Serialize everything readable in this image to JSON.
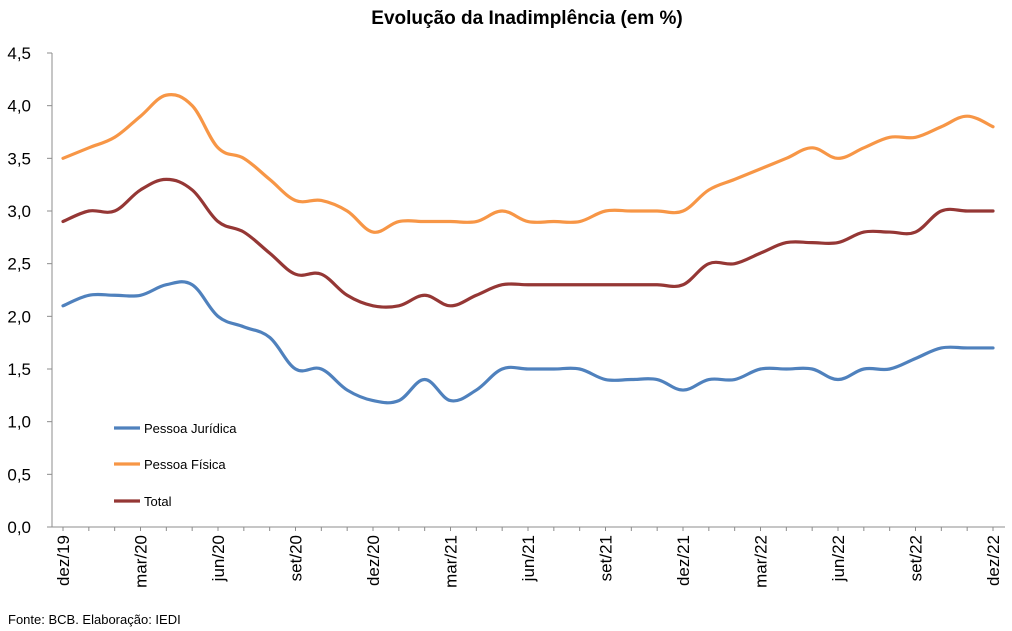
{
  "chart_data": {
    "type": "line",
    "title": "Evolução da Inadimplência (em %)",
    "ylim": [
      0,
      4.5
    ],
    "yticks": [
      "0,0",
      "0,5",
      "1,0",
      "1,5",
      "2,0",
      "2,5",
      "3,0",
      "3,5",
      "4,0",
      "4,5"
    ],
    "ytick_values": [
      0,
      0.5,
      1,
      1.5,
      2,
      2.5,
      3,
      3.5,
      4,
      4.5
    ],
    "x": [
      "dez/19",
      "jan/20",
      "fev/20",
      "mar/20",
      "abr/20",
      "mai/20",
      "jun/20",
      "jul/20",
      "ago/20",
      "set/20",
      "out/20",
      "nov/20",
      "dez/20",
      "jan/21",
      "fev/21",
      "mar/21",
      "abr/21",
      "mai/21",
      "jun/21",
      "jul/21",
      "ago/21",
      "set/21",
      "out/21",
      "nov/21",
      "dez/21",
      "jan/22",
      "fev/22",
      "mar/22",
      "abr/22",
      "mai/22",
      "jun/22",
      "jul/22",
      "ago/22",
      "set/22",
      "out/22",
      "nov/22",
      "dez/22"
    ],
    "xtick_labels": [
      "dez/19",
      "mar/20",
      "jun/20",
      "set/20",
      "dez/20",
      "mar/21",
      "jun/21",
      "set/21",
      "dez/21",
      "mar/22",
      "jun/22",
      "set/22",
      "dez/22"
    ],
    "xtick_index": [
      0,
      3,
      6,
      9,
      12,
      15,
      18,
      21,
      24,
      27,
      30,
      33,
      36
    ],
    "grid": false,
    "legend_position": "bottom-left",
    "series": [
      {
        "name": "Pessoa Jurídica",
        "color": "#4f81bd",
        "values": [
          2.1,
          2.2,
          2.2,
          2.2,
          2.3,
          2.3,
          2.0,
          1.9,
          1.8,
          1.5,
          1.5,
          1.3,
          1.2,
          1.2,
          1.4,
          1.2,
          1.3,
          1.5,
          1.5,
          1.5,
          1.5,
          1.4,
          1.4,
          1.4,
          1.3,
          1.4,
          1.4,
          1.5,
          1.5,
          1.5,
          1.4,
          1.5,
          1.5,
          1.6,
          1.7,
          1.7,
          1.7
        ]
      },
      {
        "name": "Pessoa Física",
        "color": "#f79646",
        "values": [
          3.5,
          3.6,
          3.7,
          3.9,
          4.1,
          4.0,
          3.6,
          3.5,
          3.3,
          3.1,
          3.1,
          3.0,
          2.8,
          2.9,
          2.9,
          2.9,
          2.9,
          3.0,
          2.9,
          2.9,
          2.9,
          3.0,
          3.0,
          3.0,
          3.0,
          3.2,
          3.3,
          3.4,
          3.5,
          3.6,
          3.5,
          3.6,
          3.7,
          3.7,
          3.8,
          3.9,
          3.8
        ]
      },
      {
        "name": "Total",
        "color": "#953735",
        "values": [
          2.9,
          3.0,
          3.0,
          3.2,
          3.3,
          3.2,
          2.9,
          2.8,
          2.6,
          2.4,
          2.4,
          2.2,
          2.1,
          2.1,
          2.2,
          2.1,
          2.2,
          2.3,
          2.3,
          2.3,
          2.3,
          2.3,
          2.3,
          2.3,
          2.3,
          2.5,
          2.5,
          2.6,
          2.7,
          2.7,
          2.7,
          2.8,
          2.8,
          2.8,
          3.0,
          3.0,
          3.0
        ]
      }
    ]
  },
  "footer": {
    "source": "Fonte:  BCB. Elaboração: IEDI"
  }
}
